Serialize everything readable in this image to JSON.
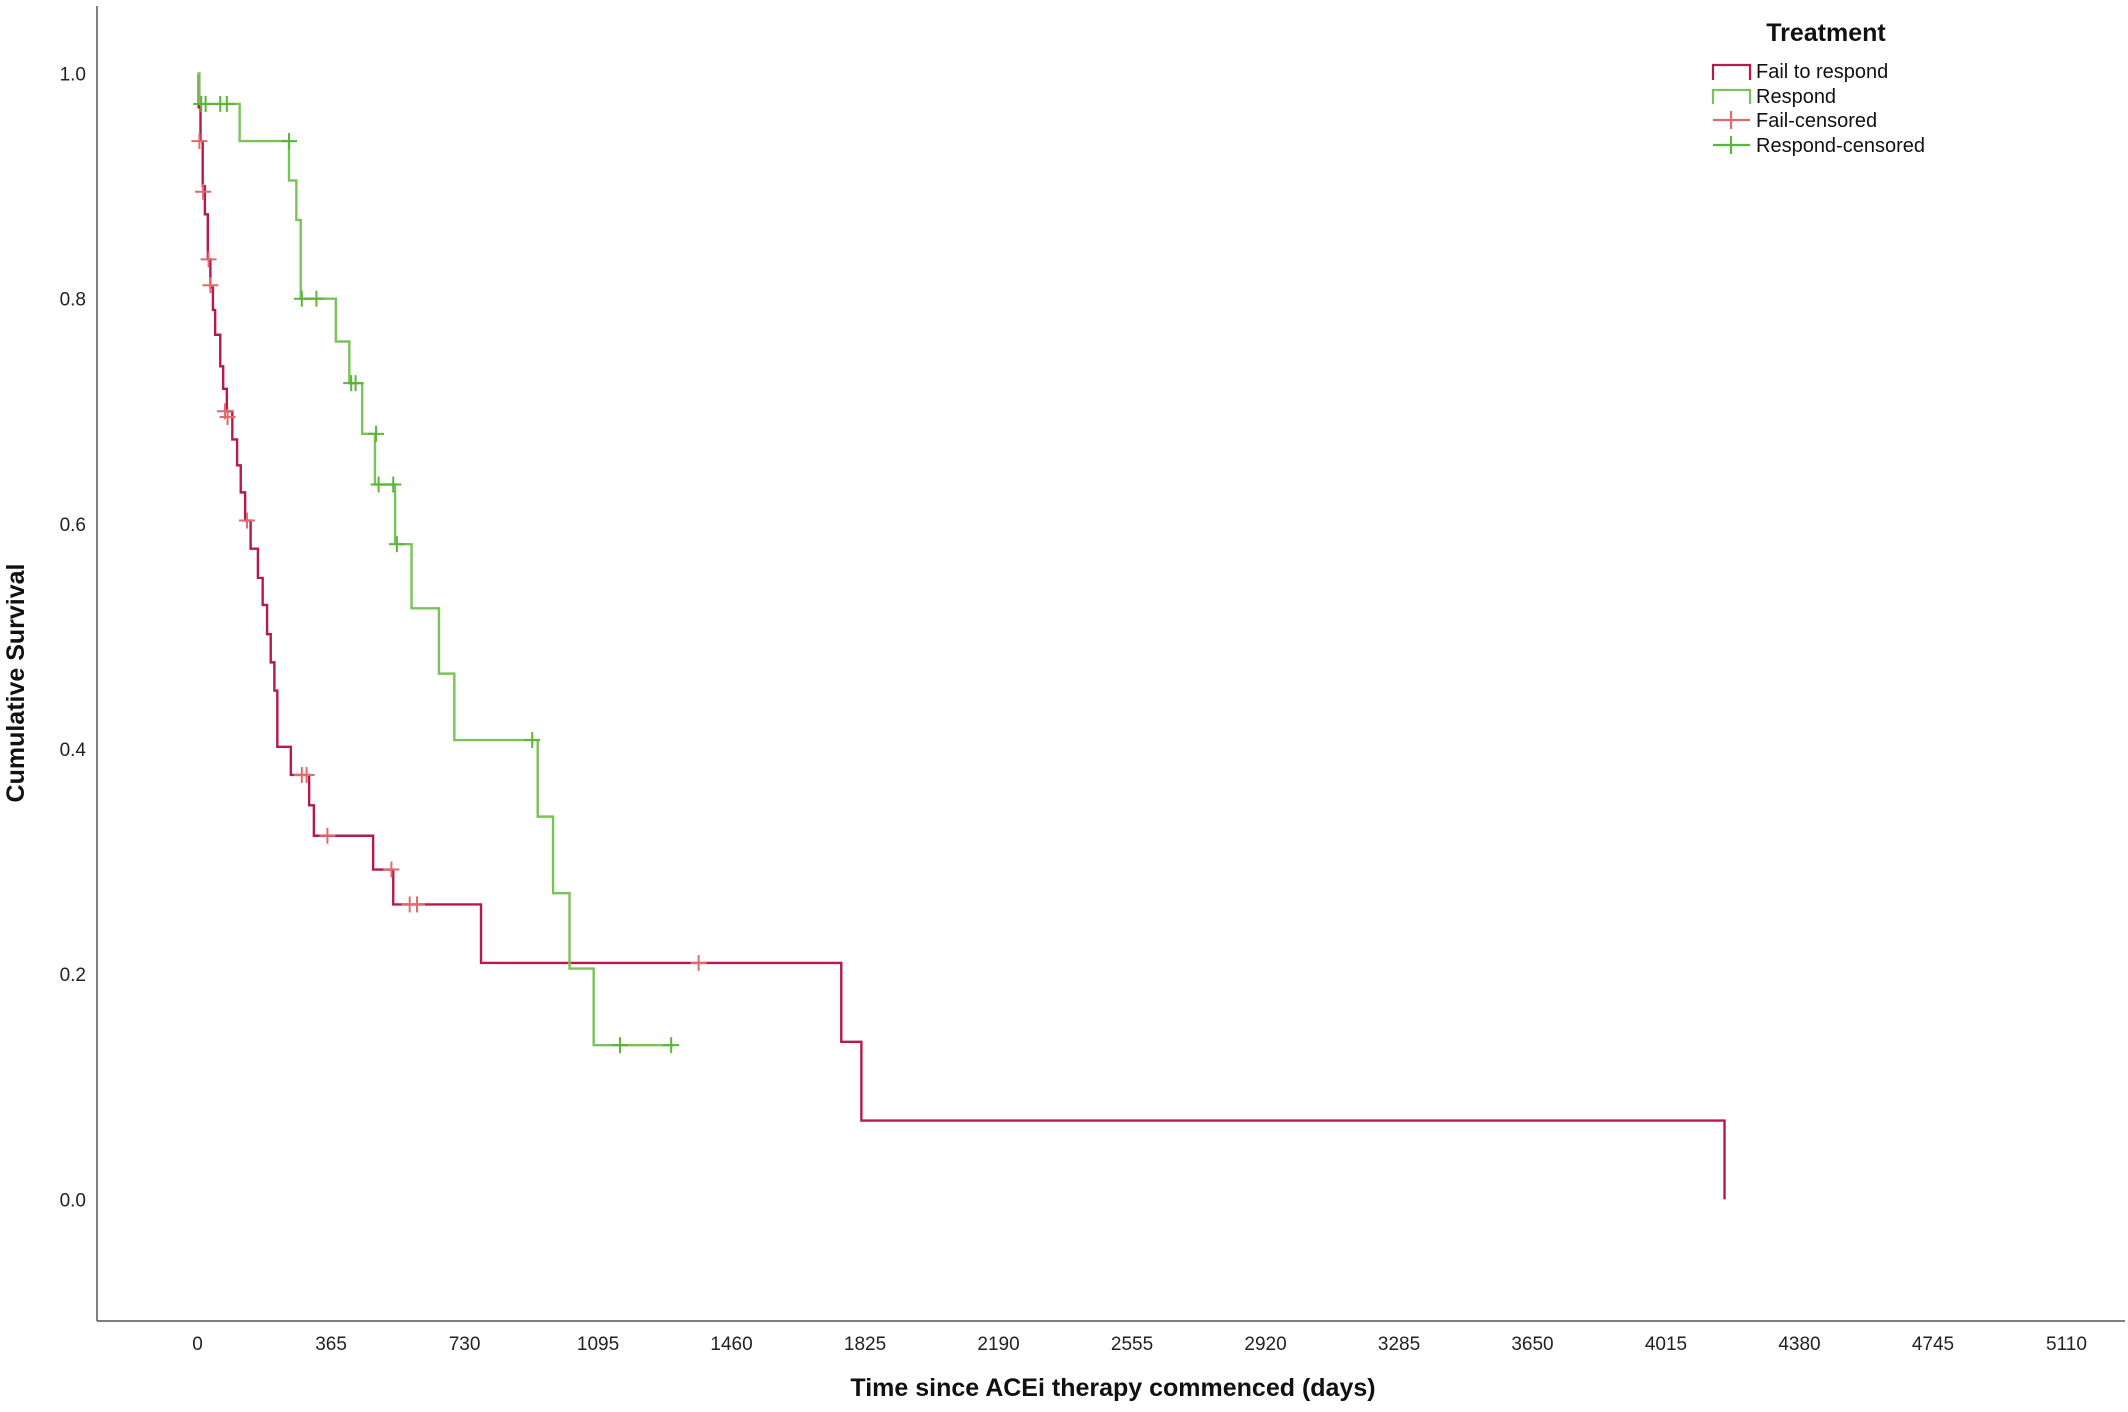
{
  "chart_data": {
    "type": "line",
    "subtype": "kaplan-meier step",
    "title": "",
    "xlabel": "Time since ACEi therapy commenced (days)",
    "ylabel": "Cumulative Survival",
    "xlim": [
      -275,
      5270
    ],
    "ylim": [
      -0.108,
      1.06
    ],
    "x_ticks": [
      0,
      365,
      730,
      1095,
      1460,
      1825,
      2190,
      2555,
      2920,
      3285,
      3650,
      4015,
      4380,
      4745,
      5110
    ],
    "y_ticks": [
      0.0,
      0.2,
      0.4,
      0.6,
      0.8,
      1.0
    ],
    "grid": false,
    "legend": {
      "title": "Treatment",
      "position": "top-right",
      "entries": [
        "Fail to respond",
        "Respond",
        "Fail-censored",
        "Respond-censored"
      ]
    },
    "series": [
      {
        "name": "Fail to respond",
        "color": "#b5194f",
        "censored_color": "#e06b6b",
        "steps": [
          [
            0,
            1.0
          ],
          [
            3,
            0.97
          ],
          [
            8,
            0.94
          ],
          [
            14,
            0.9
          ],
          [
            20,
            0.875
          ],
          [
            28,
            0.835
          ],
          [
            35,
            0.81
          ],
          [
            42,
            0.79
          ],
          [
            48,
            0.768
          ],
          [
            62,
            0.74
          ],
          [
            70,
            0.72
          ],
          [
            80,
            0.7
          ],
          [
            95,
            0.675
          ],
          [
            108,
            0.652
          ],
          [
            118,
            0.628
          ],
          [
            130,
            0.603
          ],
          [
            145,
            0.578
          ],
          [
            165,
            0.552
          ],
          [
            178,
            0.528
          ],
          [
            190,
            0.502
          ],
          [
            200,
            0.477
          ],
          [
            210,
            0.452
          ],
          [
            218,
            0.402
          ],
          [
            255,
            0.377
          ],
          [
            305,
            0.35
          ],
          [
            318,
            0.323
          ],
          [
            480,
            0.293
          ],
          [
            535,
            0.262
          ],
          [
            775,
            0.21
          ],
          [
            1760,
            0.14
          ],
          [
            1815,
            0.07
          ],
          [
            4175,
            0.0
          ]
        ],
        "end_x": 4175,
        "censored": [
          [
            5,
            0.94
          ],
          [
            15,
            0.895
          ],
          [
            30,
            0.835
          ],
          [
            35,
            0.812
          ],
          [
            75,
            0.7
          ],
          [
            82,
            0.695
          ],
          [
            135,
            0.603
          ],
          [
            285,
            0.377
          ],
          [
            298,
            0.377
          ],
          [
            355,
            0.323
          ],
          [
            530,
            0.293
          ],
          [
            580,
            0.262
          ],
          [
            600,
            0.262
          ],
          [
            1370,
            0.21
          ]
        ]
      },
      {
        "name": "Respond",
        "color": "#7cc25a",
        "censored_color": "#5ab538",
        "steps": [
          [
            0,
            1.0
          ],
          [
            5,
            0.973
          ],
          [
            115,
            0.94
          ],
          [
            250,
            0.905
          ],
          [
            270,
            0.87
          ],
          [
            282,
            0.8
          ],
          [
            378,
            0.762
          ],
          [
            415,
            0.725
          ],
          [
            450,
            0.68
          ],
          [
            485,
            0.635
          ],
          [
            540,
            0.582
          ],
          [
            585,
            0.525
          ],
          [
            660,
            0.467
          ],
          [
            702,
            0.408
          ],
          [
            930,
            0.34
          ],
          [
            972,
            0.272
          ],
          [
            1017,
            0.205
          ],
          [
            1083,
            0.137
          ]
        ],
        "end_x": 1300,
        "censored": [
          [
            10,
            0.973
          ],
          [
            22,
            0.973
          ],
          [
            62,
            0.973
          ],
          [
            80,
            0.973
          ],
          [
            250,
            0.94
          ],
          [
            285,
            0.8
          ],
          [
            325,
            0.8
          ],
          [
            420,
            0.725
          ],
          [
            432,
            0.725
          ],
          [
            488,
            0.68
          ],
          [
            495,
            0.635
          ],
          [
            535,
            0.635
          ],
          [
            545,
            0.582
          ],
          [
            915,
            0.408
          ],
          [
            1155,
            0.137
          ],
          [
            1295,
            0.137
          ]
        ]
      }
    ]
  }
}
